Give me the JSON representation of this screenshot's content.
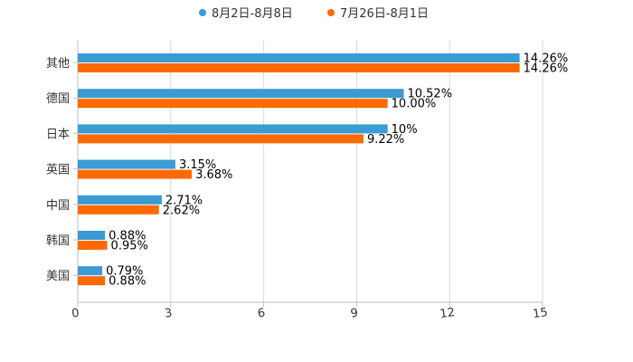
{
  "chart_data": {
    "type": "bar",
    "orientation": "horizontal",
    "categories": [
      "其他",
      "德国",
      "日本",
      "英国",
      "中国",
      "韩国",
      "美国"
    ],
    "series": [
      {
        "name": "8月2日-8月8日",
        "color": "#3A9BD5",
        "values": [
          14.26,
          10.52,
          10,
          3.15,
          2.71,
          0.88,
          0.79
        ],
        "labels": [
          "14.26%",
          "10.52%",
          "10%",
          "3.15%",
          "2.71%",
          "0.88%",
          "0.79%"
        ]
      },
      {
        "name": "7月26日-8月1日",
        "color": "#FF6A00",
        "values": [
          14.26,
          10.0,
          9.22,
          3.68,
          2.62,
          0.95,
          0.88
        ],
        "labels": [
          "14.26%",
          "10.00%",
          "9.22%",
          "3.68%",
          "2.62%",
          "0.95%",
          "0.88%"
        ]
      }
    ],
    "xlim": [
      0,
      15
    ],
    "xticks": [
      "0",
      "3",
      "6",
      "9",
      "12",
      "15"
    ],
    "grid": true,
    "legend_position": "top"
  }
}
